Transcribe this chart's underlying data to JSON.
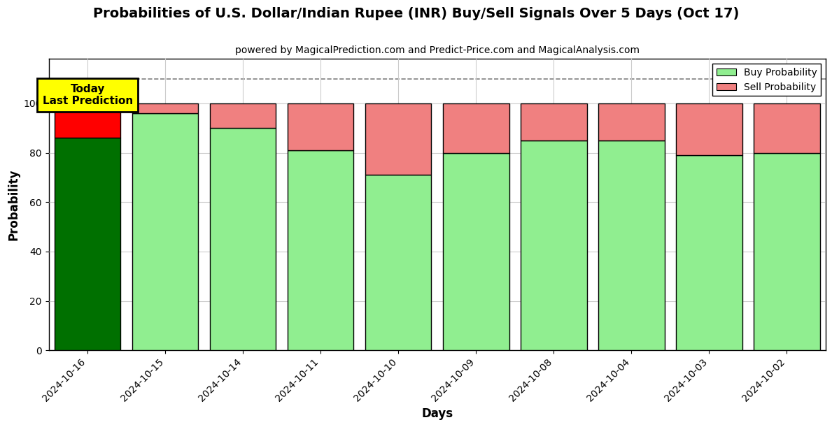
{
  "title": "Probabilities of U.S. Dollar/Indian Rupee (INR) Buy/Sell Signals Over 5 Days (Oct 17)",
  "subtitle": "powered by MagicalPrediction.com and Predict-Price.com and MagicalAnalysis.com",
  "xlabel": "Days",
  "ylabel": "Probability",
  "categories": [
    "2024-10-16",
    "2024-10-15",
    "2024-10-14",
    "2024-10-11",
    "2024-10-10",
    "2024-10-09",
    "2024-10-08",
    "2024-10-04",
    "2024-10-03",
    "2024-10-02"
  ],
  "buy_values": [
    86,
    96,
    90,
    81,
    71,
    80,
    85,
    85,
    79,
    80
  ],
  "sell_values": [
    14,
    4,
    10,
    19,
    29,
    20,
    15,
    15,
    21,
    20
  ],
  "today_buy_color": "#007000",
  "today_sell_color": "#FF0000",
  "buy_color": "#90EE90",
  "sell_color": "#F08080",
  "today_annotation_bg": "#FFFF00",
  "today_annotation_text": "Today\nLast Prediction",
  "dashed_line_y": 110,
  "ylim": [
    0,
    118
  ],
  "yticks": [
    0,
    20,
    40,
    60,
    80,
    100
  ],
  "legend_buy_label": "Buy Probability",
  "legend_sell_label": "Sell Probability",
  "grid_color": "#cccccc",
  "background_color": "#ffffff",
  "bar_edge_color": "#000000",
  "bar_width": 0.85
}
